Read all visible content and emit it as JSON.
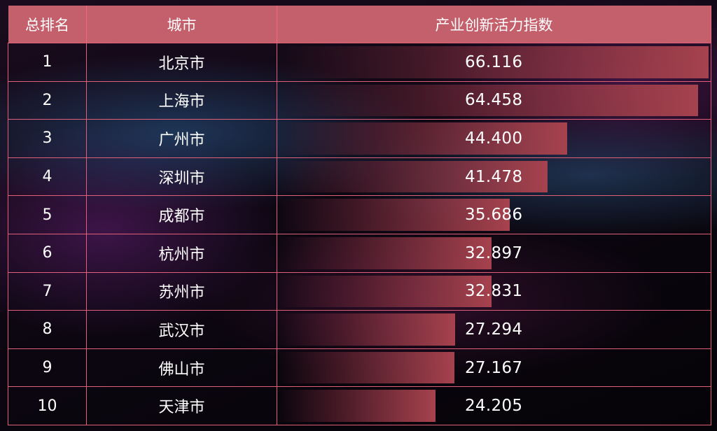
{
  "header": {
    "rank": "总排名",
    "city": "城市",
    "index": "产业创新活力指数"
  },
  "colors": {
    "header_bg": "#c4606c",
    "grid_line": "#e0607a",
    "bar_end": "#a6424e",
    "background": "#0d0712"
  },
  "chart_data": {
    "type": "table",
    "columns": [
      "总排名",
      "城市",
      "产业创新活力指数"
    ],
    "bar_max": 66.116,
    "rows": [
      {
        "rank": "1",
        "city": "北京市",
        "value": "66.116",
        "v": 66.116
      },
      {
        "rank": "2",
        "city": "上海市",
        "value": "64.458",
        "v": 64.458
      },
      {
        "rank": "3",
        "city": "广州市",
        "value": "44.400",
        "v": 44.4
      },
      {
        "rank": "4",
        "city": "深圳市",
        "value": "41.478",
        "v": 41.478
      },
      {
        "rank": "5",
        "city": "成都市",
        "value": "35.686",
        "v": 35.686
      },
      {
        "rank": "6",
        "city": "杭州市",
        "value": "32.897",
        "v": 32.897
      },
      {
        "rank": "7",
        "city": "苏州市",
        "value": "32.831",
        "v": 32.831
      },
      {
        "rank": "8",
        "city": "武汉市",
        "value": "27.294",
        "v": 27.294
      },
      {
        "rank": "9",
        "city": "佛山市",
        "value": "27.167",
        "v": 27.167
      },
      {
        "rank": "10",
        "city": "天津市",
        "value": "24.205",
        "v": 24.205
      }
    ]
  }
}
